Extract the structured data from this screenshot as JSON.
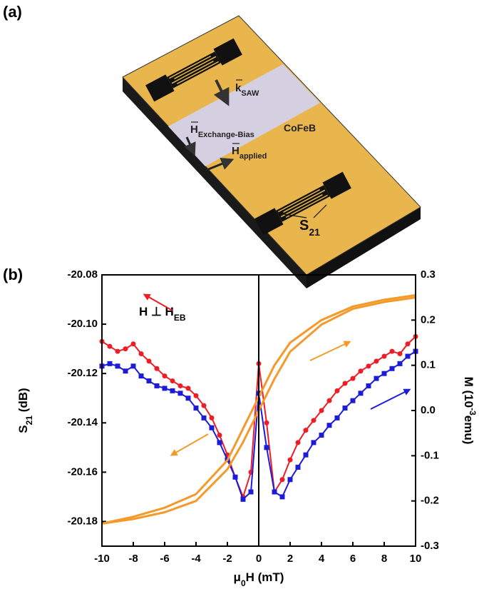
{
  "panel_a": {
    "label": "(a)",
    "k_saw": {
      "main": "k",
      "sub": "SAW"
    },
    "exchange_bias": {
      "main": "H",
      "sub": "Exchange-Bias"
    },
    "material": "CoFeB",
    "applied": {
      "main": "H",
      "sub": "applied"
    },
    "s21": {
      "main": "S",
      "sub": "21"
    }
  },
  "chart_data": {
    "type": "line",
    "panel_label": "(b)",
    "annotation": {
      "main": "H ⊥ H",
      "sub": "EB"
    },
    "xlabel": {
      "main": "μ",
      "sub": "0",
      "after": "H (mT)"
    },
    "ylabel": {
      "main": "S",
      "sub": "21",
      "after": " (dB)"
    },
    "y2label": {
      "main": "M (10",
      "sup": "-3",
      "after": "emu)"
    },
    "xlim": [
      -10,
      10
    ],
    "xticks": [
      -10,
      -8,
      -6,
      -4,
      -2,
      0,
      2,
      4,
      6,
      8,
      10
    ],
    "ylim": [
      -20.19,
      -20.08
    ],
    "yticks": [
      {
        "value": -20.18,
        "label": "-20.18"
      },
      {
        "value": -20.16,
        "label": "-20.16"
      },
      {
        "value": -20.14,
        "label": "-20.14"
      },
      {
        "value": -20.12,
        "label": "-20.12"
      },
      {
        "value": -20.1,
        "label": "-20.10"
      },
      {
        "value": -20.08,
        "label": "-20.08"
      }
    ],
    "y2lim": [
      -0.3,
      0.3
    ],
    "y2ticks": [
      {
        "value": -0.3,
        "label": "-0.3"
      },
      {
        "value": -0.2,
        "label": "-0.2"
      },
      {
        "value": -0.1,
        "label": "-0.1"
      },
      {
        "value": 0,
        "label": "0.0"
      },
      {
        "value": 0.1,
        "label": "0.1"
      },
      {
        "value": 0.2,
        "label": "0.2"
      },
      {
        "value": 0.3,
        "label": "0.3"
      }
    ],
    "series": [
      {
        "color": "#ee1c24",
        "marker": "circle",
        "axis": "y",
        "x": [
          -10,
          -9.5,
          -9,
          -8.5,
          -8,
          -7.5,
          -7,
          -6.5,
          -6,
          -5.5,
          -5,
          -4.5,
          -4,
          -3.5,
          -3,
          -2.5,
          -2,
          -1.5,
          -1,
          -0.5,
          0,
          0.5,
          1,
          1.5,
          2,
          2.5,
          3,
          3.5,
          4,
          4.5,
          5,
          5.5,
          6,
          6.5,
          7,
          7.5,
          8,
          8.5,
          9,
          9.5,
          10
        ],
        "values": [
          -20.107,
          -20.109,
          -20.111,
          -20.11,
          -20.108,
          -20.112,
          -20.115,
          -20.118,
          -20.121,
          -20.123,
          -20.125,
          -20.126,
          -20.129,
          -20.133,
          -20.138,
          -20.145,
          -20.153,
          -20.162,
          -20.17,
          -20.16,
          -20.116,
          -20.14,
          -20.168,
          -20.163,
          -20.155,
          -20.148,
          -20.143,
          -20.139,
          -20.135,
          -20.131,
          -20.127,
          -20.124,
          -20.122,
          -20.119,
          -20.117,
          -20.115,
          -20.113,
          -20.111,
          -20.112,
          -20.108,
          -20.105
        ]
      },
      {
        "color": "#1c1cd8",
        "marker": "square",
        "axis": "y",
        "x": [
          -10,
          -9.5,
          -9,
          -8.5,
          -8,
          -7.5,
          -7,
          -6.5,
          -6,
          -5.5,
          -5,
          -4.5,
          -4,
          -3.5,
          -3,
          -2.5,
          -2,
          -1.5,
          -1,
          -0.5,
          0,
          0.5,
          1,
          1.5,
          2,
          2.5,
          3,
          3.5,
          4,
          4.5,
          5,
          5.5,
          6,
          6.5,
          7,
          7.5,
          8,
          8.5,
          9,
          9.5,
          10
        ],
        "values": [
          -20.117,
          -20.116,
          -20.117,
          -20.119,
          -20.117,
          -20.121,
          -20.123,
          -20.125,
          -20.126,
          -20.127,
          -20.128,
          -20.13,
          -20.134,
          -20.138,
          -20.142,
          -20.148,
          -20.155,
          -20.162,
          -20.171,
          -20.168,
          -20.128,
          -20.15,
          -20.168,
          -20.17,
          -20.163,
          -20.158,
          -20.153,
          -20.148,
          -20.145,
          -20.141,
          -20.138,
          -20.134,
          -20.131,
          -20.128,
          -20.125,
          -20.122,
          -20.12,
          -20.118,
          -20.116,
          -20.113,
          -20.111
        ]
      },
      {
        "color": "#f39a2b",
        "marker": "none",
        "axis": "y2",
        "x": [
          -10,
          -8,
          -6,
          -4,
          -2,
          -1,
          0,
          1,
          2,
          4,
          6,
          8,
          10
        ],
        "values": [
          -0.25,
          -0.24,
          -0.225,
          -0.2,
          -0.13,
          -0.07,
          0,
          0.07,
          0.13,
          0.19,
          0.225,
          0.24,
          0.25
        ]
      },
      {
        "color": "#f39a2b",
        "marker": "none",
        "axis": "y2",
        "x": [
          -10,
          -8,
          -6,
          -4,
          -2,
          -1,
          0,
          1,
          2,
          4,
          6,
          8,
          10
        ],
        "values": [
          -0.25,
          -0.235,
          -0.215,
          -0.185,
          -0.11,
          -0.04,
          0.03,
          0.1,
          0.15,
          0.2,
          0.23,
          0.245,
          0.255
        ]
      }
    ]
  }
}
